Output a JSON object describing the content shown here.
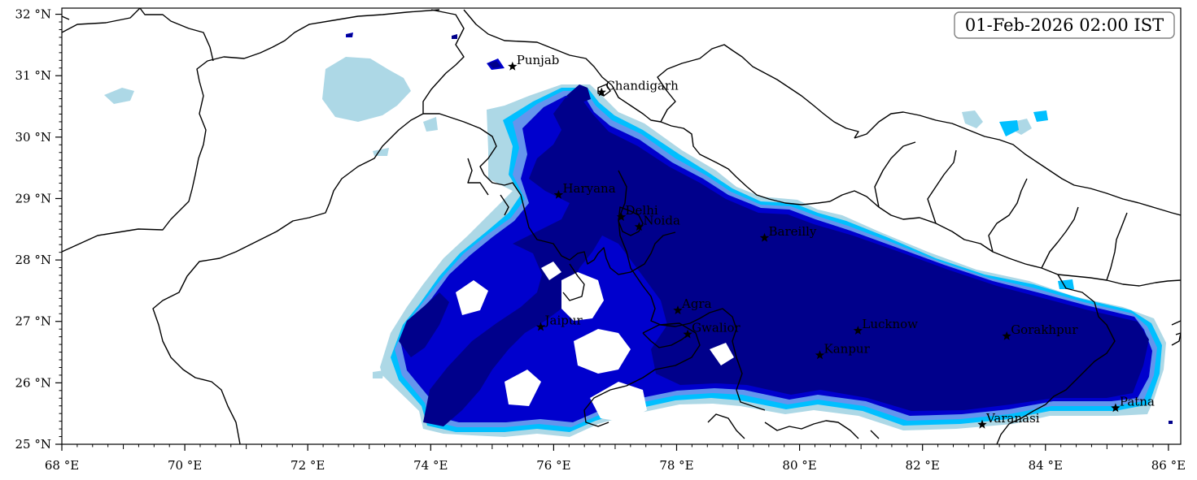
{
  "map": {
    "timestamp": "01-Feb-2026 02:00 IST",
    "lon_range": [
      68,
      86.2
    ],
    "lat_range": [
      25,
      32.1
    ],
    "x_ticks": [
      {
        "lon": 68,
        "label": "68 °E"
      },
      {
        "lon": 70,
        "label": "70 °E"
      },
      {
        "lon": 72,
        "label": "72 °E"
      },
      {
        "lon": 74,
        "label": "74 °E"
      },
      {
        "lon": 76,
        "label": "76 °E"
      },
      {
        "lon": 78,
        "label": "78 °E"
      },
      {
        "lon": 80,
        "label": "80 °E"
      },
      {
        "lon": 82,
        "label": "82 °E"
      },
      {
        "lon": 84,
        "label": "84 °E"
      },
      {
        "lon": 86,
        "label": "86 °E"
      }
    ],
    "y_ticks": [
      {
        "lat": 25,
        "label": "25 °N"
      },
      {
        "lat": 26,
        "label": "26 °N"
      },
      {
        "lat": 27,
        "label": "27 °N"
      },
      {
        "lat": 28,
        "label": "28 °N"
      },
      {
        "lat": 29,
        "label": "29 °N"
      },
      {
        "lat": 30,
        "label": "30 °N"
      },
      {
        "lat": 31,
        "label": "31 °N"
      },
      {
        "lat": 32,
        "label": "32 °N"
      }
    ],
    "cities": [
      {
        "name": "Punjab",
        "lon": 75.33,
        "lat": 31.15
      },
      {
        "name": "Chandigarh",
        "lon": 76.78,
        "lat": 30.73
      },
      {
        "name": "Haryana",
        "lon": 76.08,
        "lat": 29.06
      },
      {
        "name": "Delhi",
        "lon": 77.1,
        "lat": 28.7
      },
      {
        "name": "Noida",
        "lon": 77.39,
        "lat": 28.54
      },
      {
        "name": "Bareilly",
        "lon": 79.43,
        "lat": 28.36
      },
      {
        "name": "Agra",
        "lon": 78.02,
        "lat": 27.18
      },
      {
        "name": "Jaipur",
        "lon": 75.79,
        "lat": 26.91
      },
      {
        "name": "Gwalior",
        "lon": 78.18,
        "lat": 26.79
      },
      {
        "name": "Lucknow",
        "lon": 80.95,
        "lat": 26.85
      },
      {
        "name": "Kanpur",
        "lon": 80.33,
        "lat": 26.45
      },
      {
        "name": "Gorakhpur",
        "lon": 83.37,
        "lat": 26.76
      },
      {
        "name": "Patna",
        "lon": 85.14,
        "lat": 25.59
      },
      {
        "name": "Varanasi",
        "lon": 82.97,
        "lat": 25.32
      }
    ],
    "colors": {
      "level1": "#add8e6",
      "level2": "#00bfff",
      "level3": "#6495ed",
      "level4": "#0000cd",
      "level5": "#00008b",
      "border": "#000000"
    }
  }
}
